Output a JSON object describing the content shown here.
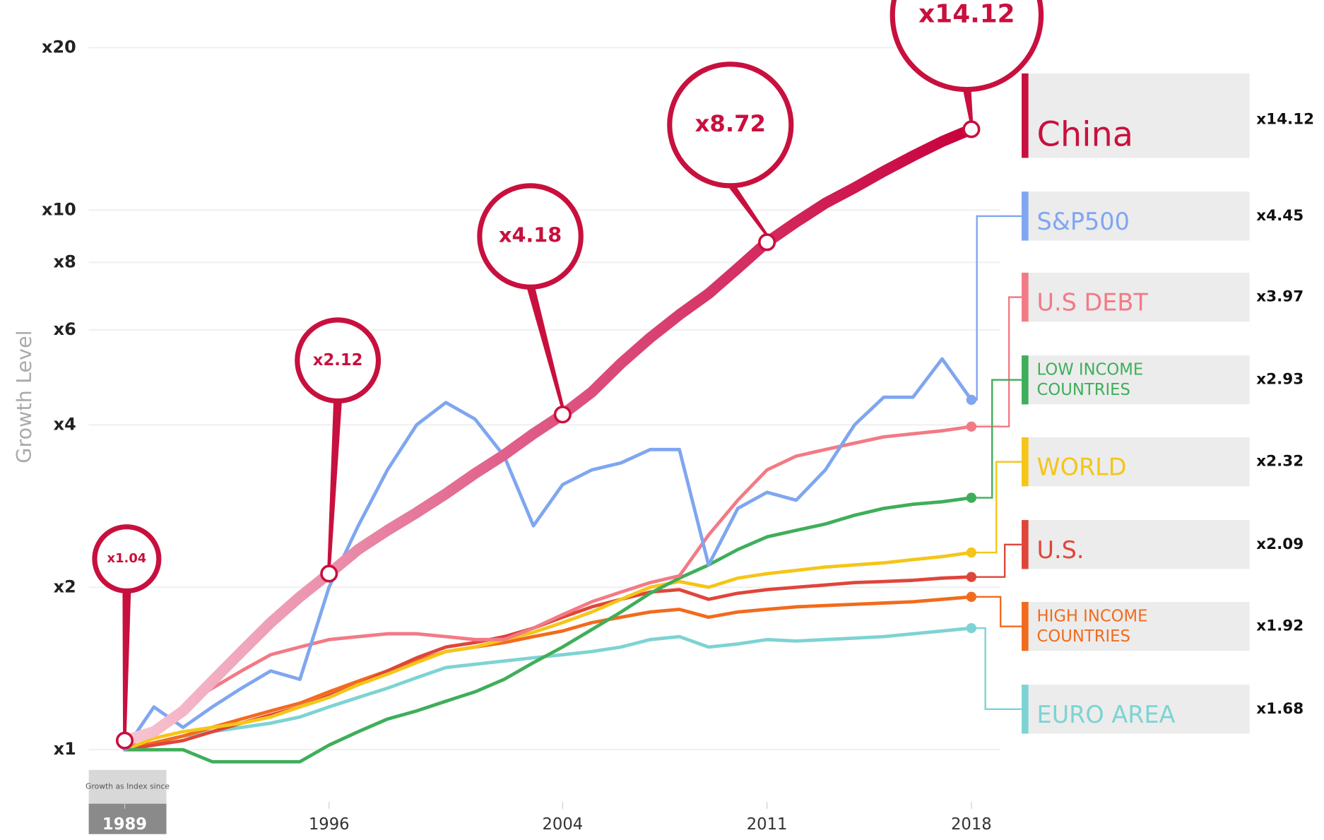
{
  "chart_data": {
    "type": "line",
    "y_label": "Growth Level",
    "index_note": "Growth as Index since",
    "log_scale": true,
    "grid": true,
    "x": [
      1989,
      1990,
      1991,
      1992,
      1993,
      1994,
      1995,
      1996,
      1997,
      1998,
      1999,
      2000,
      2001,
      2002,
      2003,
      2004,
      2005,
      2006,
      2007,
      2008,
      2009,
      2010,
      2011,
      2012,
      2013,
      2014,
      2015,
      2016,
      2017,
      2018
    ],
    "xlim": [
      1988,
      2019
    ],
    "xticks": [
      1989,
      1996,
      2004,
      2011,
      2018
    ],
    "ylim": [
      0.8,
      22
    ],
    "yticks": [
      {
        "value": 1,
        "label": "x1"
      },
      {
        "value": 2,
        "label": "x2"
      },
      {
        "value": 4,
        "label": "x4"
      },
      {
        "value": 6,
        "label": "x6"
      },
      {
        "value": 8,
        "label": "x8"
      },
      {
        "value": 10,
        "label": "x10"
      },
      {
        "value": 20,
        "label": "x20"
      }
    ],
    "series": [
      {
        "name": "China",
        "color": "#c8103e",
        "end_label": "x14.12",
        "values": [
          1.04,
          1.08,
          1.18,
          1.34,
          1.52,
          1.72,
          1.92,
          2.12,
          2.35,
          2.55,
          2.75,
          2.98,
          3.25,
          3.52,
          3.85,
          4.18,
          4.6,
          5.2,
          5.8,
          6.4,
          7.0,
          7.8,
          8.72,
          9.5,
          10.3,
          11.0,
          11.8,
          12.6,
          13.4,
          14.12
        ]
      },
      {
        "name": "S&P500",
        "color": "#7fa6f0",
        "end_label": "x4.45",
        "values": [
          1.0,
          1.2,
          1.1,
          1.2,
          1.3,
          1.4,
          1.35,
          2.0,
          2.6,
          3.3,
          4.0,
          4.4,
          4.1,
          3.5,
          2.6,
          3.1,
          3.3,
          3.4,
          3.6,
          3.6,
          2.2,
          2.8,
          3.0,
          2.9,
          3.3,
          4.0,
          4.5,
          4.5,
          5.3,
          4.45
        ]
      },
      {
        "name": "U.S DEBT",
        "color": "#f27a85",
        "end_label": "x3.97",
        "values": [
          1.0,
          1.1,
          1.2,
          1.3,
          1.4,
          1.5,
          1.55,
          1.6,
          1.62,
          1.64,
          1.64,
          1.62,
          1.6,
          1.6,
          1.68,
          1.78,
          1.88,
          1.96,
          2.04,
          2.1,
          2.5,
          2.9,
          3.3,
          3.5,
          3.6,
          3.7,
          3.8,
          3.85,
          3.9,
          3.97
        ]
      },
      {
        "name": "LOW INCOME COUNTRIES",
        "color": "#3fae5a",
        "end_label": "x2.93",
        "values": [
          1.0,
          1.0,
          1.0,
          0.95,
          0.95,
          0.95,
          0.95,
          1.02,
          1.08,
          1.14,
          1.18,
          1.23,
          1.28,
          1.35,
          1.45,
          1.55,
          1.67,
          1.8,
          1.95,
          2.08,
          2.2,
          2.35,
          2.48,
          2.55,
          2.62,
          2.72,
          2.8,
          2.85,
          2.88,
          2.93
        ]
      },
      {
        "name": "WORLD",
        "color": "#f5c518",
        "end_label": "x2.32",
        "values": [
          1.0,
          1.05,
          1.08,
          1.1,
          1.12,
          1.15,
          1.2,
          1.25,
          1.32,
          1.38,
          1.45,
          1.52,
          1.55,
          1.6,
          1.65,
          1.72,
          1.8,
          1.9,
          2.0,
          2.05,
          2.0,
          2.08,
          2.12,
          2.15,
          2.18,
          2.2,
          2.22,
          2.25,
          2.28,
          2.32
        ]
      },
      {
        "name": "U.S.",
        "color": "#e0453a",
        "end_label": "x2.09",
        "values": [
          1.0,
          1.02,
          1.04,
          1.08,
          1.12,
          1.16,
          1.2,
          1.26,
          1.32,
          1.4,
          1.48,
          1.55,
          1.58,
          1.62,
          1.68,
          1.76,
          1.84,
          1.9,
          1.96,
          1.98,
          1.9,
          1.95,
          1.98,
          2.0,
          2.02,
          2.04,
          2.05,
          2.06,
          2.08,
          2.09
        ]
      },
      {
        "name": "HIGH INCOME COUNTRIES",
        "color": "#f26b1d",
        "end_label": "x1.92",
        "values": [
          1.0,
          1.03,
          1.06,
          1.1,
          1.14,
          1.18,
          1.22,
          1.28,
          1.34,
          1.4,
          1.46,
          1.52,
          1.55,
          1.58,
          1.62,
          1.66,
          1.72,
          1.76,
          1.8,
          1.82,
          1.76,
          1.8,
          1.82,
          1.84,
          1.85,
          1.86,
          1.87,
          1.88,
          1.9,
          1.92
        ]
      },
      {
        "name": "EURO AREA",
        "color": "#7dd3d3",
        "end_label": "x1.68",
        "values": [
          1.0,
          1.03,
          1.06,
          1.08,
          1.1,
          1.12,
          1.15,
          1.2,
          1.25,
          1.3,
          1.36,
          1.42,
          1.44,
          1.46,
          1.48,
          1.5,
          1.52,
          1.55,
          1.6,
          1.62,
          1.55,
          1.57,
          1.6,
          1.59,
          1.6,
          1.61,
          1.62,
          1.64,
          1.66,
          1.68
        ]
      }
    ],
    "annotations": [
      {
        "x": 1989,
        "value": 1.04,
        "label": "x1.04"
      },
      {
        "x": 1996,
        "value": 2.12,
        "label": "x2.12"
      },
      {
        "x": 2004,
        "value": 4.18,
        "label": "x4.18"
      },
      {
        "x": 2011,
        "value": 8.72,
        "label": "x8.72"
      },
      {
        "x": 2018,
        "value": 14.12,
        "label": "x14.12"
      }
    ]
  }
}
